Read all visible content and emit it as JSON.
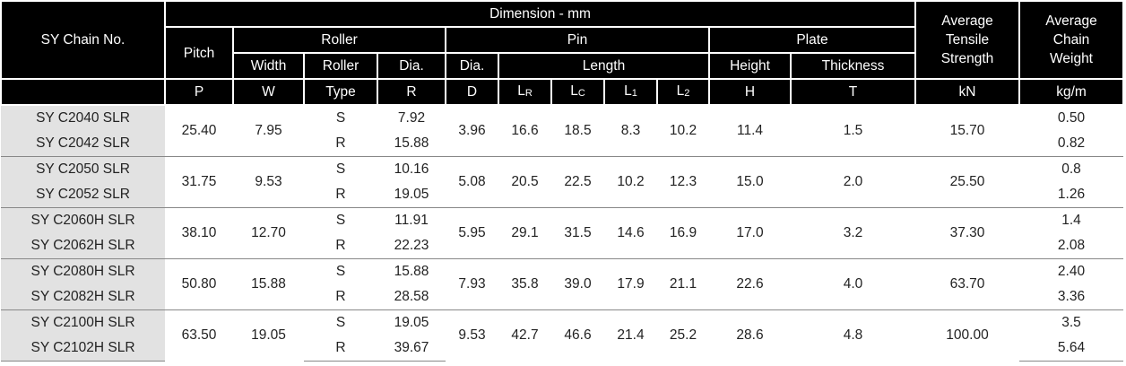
{
  "header": {
    "chain_no": "SY Chain No.",
    "dimension": "Dimension - mm",
    "pitch": "Pitch",
    "roller": "Roller",
    "pin": "Pin",
    "plate": "Plate",
    "tensile": [
      "Average",
      "Tensile",
      "Strength"
    ],
    "weight": [
      "Average",
      "Chain",
      "Weight"
    ],
    "width": "Width",
    "roller_type": "Roller",
    "roller_dia": "Dia.",
    "pin_dia": "Dia.",
    "length": "Length",
    "height": "Height",
    "thickness": "Thickness",
    "symbols": [
      {
        "base": "P"
      },
      {
        "base": "W"
      },
      {
        "base": "Type"
      },
      {
        "base": "R"
      },
      {
        "base": "D"
      },
      {
        "base": "L",
        "sub": "R"
      },
      {
        "base": "L",
        "sub": "C"
      },
      {
        "base": "L",
        "sub": "1"
      },
      {
        "base": "L",
        "sub": "2"
      },
      {
        "base": "H"
      },
      {
        "base": "T"
      },
      {
        "base": "kN"
      },
      {
        "base": "kg/m"
      }
    ]
  },
  "groups": [
    {
      "pitch": "25.40",
      "width": "7.95",
      "d": "3.96",
      "lr": "16.6",
      "lc": "18.5",
      "l1": "8.3",
      "l2": "10.2",
      "h": "11.4",
      "t": "1.5",
      "tensile": "15.70",
      "rows": [
        {
          "chain": "SY C2040 SLR",
          "type": "S",
          "dia": "7.92",
          "weight": "0.50"
        },
        {
          "chain": "SY C2042 SLR",
          "type": "R",
          "dia": "15.88",
          "weight": "0.82"
        }
      ]
    },
    {
      "pitch": "31.75",
      "width": "9.53",
      "d": "5.08",
      "lr": "20.5",
      "lc": "22.5",
      "l1": "10.2",
      "l2": "12.3",
      "h": "15.0",
      "t": "2.0",
      "tensile": "25.50",
      "rows": [
        {
          "chain": "SY C2050 SLR",
          "type": "S",
          "dia": "10.16",
          "weight": "0.8"
        },
        {
          "chain": "SY C2052 SLR",
          "type": "R",
          "dia": "19.05",
          "weight": "1.26"
        }
      ]
    },
    {
      "pitch": "38.10",
      "width": "12.70",
      "d": "5.95",
      "lr": "29.1",
      "lc": "31.5",
      "l1": "14.6",
      "l2": "16.9",
      "h": "17.0",
      "t": "3.2",
      "tensile": "37.30",
      "rows": [
        {
          "chain": "SY C2060H SLR",
          "type": "S",
          "dia": "11.91",
          "weight": "1.4"
        },
        {
          "chain": "SY C2062H SLR",
          "type": "R",
          "dia": "22.23",
          "weight": "2.08"
        }
      ]
    },
    {
      "pitch": "50.80",
      "width": "15.88",
      "d": "7.93",
      "lr": "35.8",
      "lc": "39.0",
      "l1": "17.9",
      "l2": "21.1",
      "h": "22.6",
      "t": "4.0",
      "tensile": "63.70",
      "rows": [
        {
          "chain": "SY C2080H SLR",
          "type": "S",
          "dia": "15.88",
          "weight": "2.40"
        },
        {
          "chain": "SY C2082H SLR",
          "type": "R",
          "dia": "28.58",
          "weight": "3.36"
        }
      ]
    },
    {
      "pitch": "63.50",
      "width": "19.05",
      "d": "9.53",
      "lr": "42.7",
      "lc": "46.6",
      "l1": "21.4",
      "l2": "25.2",
      "h": "28.6",
      "t": "4.8",
      "tensile": "100.00",
      "rows": [
        {
          "chain": "SY C2100H SLR",
          "type": "S",
          "dia": "19.05",
          "weight": "3.5"
        },
        {
          "chain": "SY C2102H SLR",
          "type": "R",
          "dia": "39.67",
          "weight": "5.64"
        }
      ]
    }
  ]
}
